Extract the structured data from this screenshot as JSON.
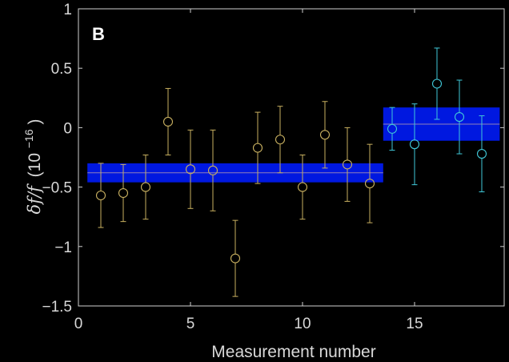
{
  "chart_data": {
    "type": "scatter",
    "panel_label": "B",
    "xlabel": "Measurement number",
    "ylabel": {
      "main": "δf/f",
      "unit_base": "(10",
      "unit_exponent": "−16",
      "unit_close": ")"
    },
    "xlim": [
      0,
      19
    ],
    "ylim": [
      -1.5,
      1
    ],
    "xticks": [
      0,
      5,
      10,
      15
    ],
    "yticks": [
      -1.5,
      -1,
      -0.5,
      0,
      0.5,
      1
    ],
    "xtick_labels": [
      "0",
      "5",
      "10",
      "15"
    ],
    "ytick_labels": [
      "−1.5",
      "−1",
      "−0.5",
      "0",
      "0.5",
      "1"
    ],
    "grid": false,
    "series": [
      {
        "color": "#c8b060",
        "points": [
          {
            "x": 1,
            "y": -0.57,
            "err": 0.27
          },
          {
            "x": 2,
            "y": -0.55,
            "err": 0.24
          },
          {
            "x": 3,
            "y": -0.5,
            "err": 0.27
          },
          {
            "x": 4,
            "y": 0.05,
            "err": 0.28
          },
          {
            "x": 5,
            "y": -0.35,
            "err": 0.33
          },
          {
            "x": 6,
            "y": -0.36,
            "err": 0.34
          },
          {
            "x": 7,
            "y": -1.1,
            "err": 0.32
          },
          {
            "x": 8,
            "y": -0.17,
            "err": 0.3
          },
          {
            "x": 9,
            "y": -0.1,
            "err": 0.28
          },
          {
            "x": 10,
            "y": -0.5,
            "err": 0.27
          },
          {
            "x": 11,
            "y": -0.06,
            "err": 0.28
          },
          {
            "x": 12,
            "y": -0.31,
            "err": 0.31
          },
          {
            "x": 13,
            "y": -0.47,
            "err": 0.33
          }
        ]
      },
      {
        "color": "#40c8d8",
        "points": [
          {
            "x": 14,
            "y": -0.01,
            "err": 0.18
          },
          {
            "x": 15,
            "y": -0.14,
            "err": 0.34
          },
          {
            "x": 16,
            "y": 0.37,
            "err": 0.3
          },
          {
            "x": 17,
            "y": 0.09,
            "err": 0.31
          },
          {
            "x": 18,
            "y": -0.22,
            "err": 0.32
          }
        ]
      }
    ],
    "mean_bands": [
      {
        "x_start": 0.4,
        "x_end": 13.6,
        "mean": -0.38,
        "lower": -0.46,
        "upper": -0.3,
        "color": "#0018e0"
      },
      {
        "x_start": 13.6,
        "x_end": 18.8,
        "mean": 0.03,
        "lower": -0.11,
        "upper": 0.17,
        "color": "#0018e0"
      }
    ]
  }
}
